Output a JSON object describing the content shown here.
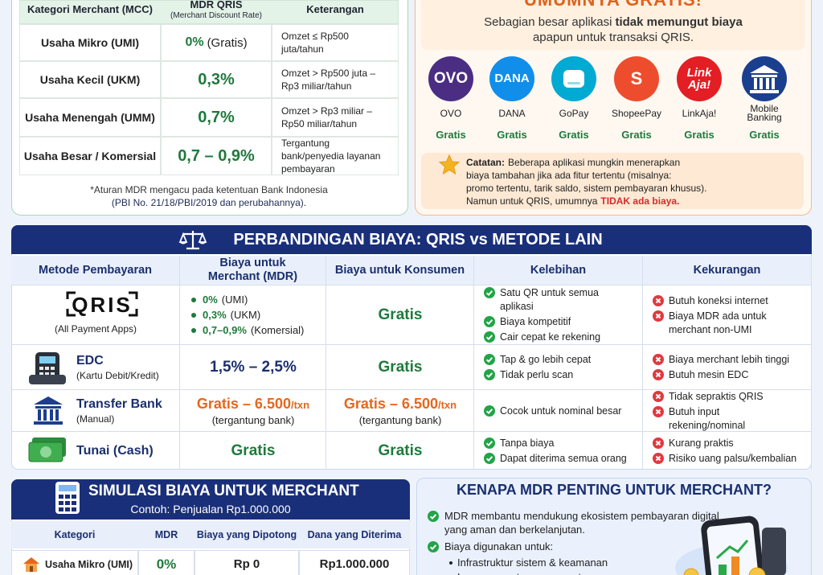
{
  "mdr_table": {
    "headers": [
      "Kategori Merchant (MCC)",
      "MDR QRIS",
      "Keterangan"
    ],
    "mdr_header_sub": "(Merchant Discount Rate)",
    "rows": [
      {
        "category": "Usaha Mikro (UMI)",
        "mdr": "0%",
        "mdr_note": "(Gratis)",
        "note": "Omzet ≤ Rp500 juta/tahun"
      },
      {
        "category": "Usaha Kecil (UKM)",
        "mdr": "0,3%",
        "note": "Omzet > Rp500 juta – Rp3 miliar/tahun"
      },
      {
        "category": "Usaha Menengah (UMM)",
        "mdr": "0,7%",
        "note": "Omzet > Rp3 miliar – Rp50 miliar/tahun"
      },
      {
        "category": "Usaha Besar / Komersial",
        "mdr": "0,7 – 0,9%",
        "note": "Tergantung bank/penyedia layanan pembayaran"
      }
    ],
    "footnote": [
      "*Aturan MDR mengacu pada ketentuan Bank Indonesia",
      "(PBI No. 21/18/PBI/2019 dan perubahannya)."
    ]
  },
  "free_apps": {
    "title": "UMUMNYA GRATIS!",
    "subtitle": [
      "Sebagian besar aplikasi",
      "tidak memungut biaya",
      "apapun untuk transaksi QRIS."
    ],
    "apps": [
      {
        "name": "OVO",
        "logo": [
          "OVO"
        ],
        "color": "#4b2d83",
        "status": "Gratis"
      },
      {
        "name": "DANA",
        "logo": [
          "DANA"
        ],
        "color": "#118eea",
        "status": "Gratis"
      },
      {
        "name": "GoPay",
        "color": "#00aad2",
        "status": "Gratis"
      },
      {
        "name": "ShopeePay",
        "logo": [
          "S"
        ],
        "color": "#ee4d2d",
        "status": "Gratis"
      },
      {
        "name": "LinkAja!",
        "logo": [
          "Link",
          "Aja!"
        ],
        "color": "#e31e24",
        "status": "Gratis"
      },
      {
        "name": "Mobile Banking",
        "color": "#1b3f8f",
        "status": "Gratis"
      }
    ],
    "note": {
      "label": "Catatan:",
      "text": [
        "Beberapa aplikasi mungkin menerapkan",
        "biaya tambahan jika ada fitur tertentu (misalnya:",
        "promo tertentu, tarik saldo, sistem pembayaran khusus).",
        "Namun untuk QRIS, umumnya"
      ],
      "emphasis": "TIDAK ada biaya."
    }
  },
  "comparison": {
    "title": "PERBANDINGAN BIAYA: QRIS vs METODE LAIN",
    "headers": [
      "Metode Pembayaran",
      "Biaya untuk Merchant (MDR)",
      "Biaya untuk Konsumen",
      "Kelebihan",
      "Kekurangan"
    ],
    "rows": [
      {
        "method": {
          "logo": "QRIS",
          "sub": "(All Payment Apps)"
        },
        "merchant": {
          "list": [
            {
              "value": "0%",
              "note": "(UMI)"
            },
            {
              "value": "0,3%",
              "note": "(UKM)"
            },
            {
              "value": "0,7–0,9%",
              "note": "(Komersial)"
            }
          ],
          "color": "#1e7a3c"
        },
        "consumer": {
          "value": "Gratis",
          "color": "#1e7a3c"
        },
        "pros": [
          "Satu QR untuk semua aplikasi",
          "Biaya kompetitif",
          "Cair cepat ke rekening"
        ],
        "cons": [
          "Butuh koneksi internet",
          "Biaya MDR ada untuk merchant non-UMI"
        ]
      },
      {
        "method": {
          "name": "EDC",
          "sub": "(Kartu Debit/Kredit)"
        },
        "merchant": {
          "value": "1,5% – 2,5%",
          "color": "#1a2f6e"
        },
        "consumer": {
          "value": "Gratis",
          "color": "#1e7a3c"
        },
        "pros": [
          "Tap & go lebih cepat",
          "Tidak perlu scan"
        ],
        "cons": [
          "Biaya merchant lebih tinggi",
          "Butuh mesin EDC"
        ]
      },
      {
        "method": {
          "name": "Transfer Bank",
          "sub": "(Manual)"
        },
        "merchant": {
          "value": "Gratis – 6.500",
          "unit": "/txn",
          "note": "(tergantung bank)",
          "color": "#e8661c"
        },
        "consumer": {
          "value": "Gratis – 6.500",
          "unit": "/txn",
          "note": "(tergantung bank)",
          "color": "#e8661c"
        },
        "pros": [
          "Cocok untuk nominal besar"
        ],
        "cons": [
          "Tidak sepraktis QRIS",
          "Butuh input rekening/nominal"
        ]
      },
      {
        "method": {
          "name": "Tunai (Cash)"
        },
        "merchant": {
          "value": "Gratis",
          "color": "#1e7a3c"
        },
        "consumer": {
          "value": "Gratis",
          "color": "#1e7a3c"
        },
        "pros": [
          "Tanpa biaya",
          "Dapat diterima semua orang"
        ],
        "cons": [
          "Kurang praktis",
          "Risiko uang palsu/kembalian"
        ]
      }
    ]
  },
  "simulation": {
    "title": "SIMULASI BIAYA UNTUK MERCHANT",
    "subtitle": "Contoh: Penjualan Rp1.000.000",
    "headers": [
      "Kategori",
      "MDR",
      "Biaya yang Dipotong",
      "Dana yang Diterima"
    ],
    "rows": [
      [
        "Usaha Mikro (UMI)",
        "0%",
        "Rp 0",
        "Rp1.000.000"
      ]
    ]
  },
  "why_mdr": {
    "title": "KENAPA MDR PENTING UNTUK MERCHANT?",
    "bullets": [
      {
        "text": "MDR membantu mendukung ekosistem pembayaran digital yang aman dan berkelanjutan."
      },
      {
        "text": "Biaya digunakan untuk:",
        "sub": [
          "Infrastruktur sistem & keamanan",
          "Layanan customer support"
        ]
      }
    ]
  }
}
